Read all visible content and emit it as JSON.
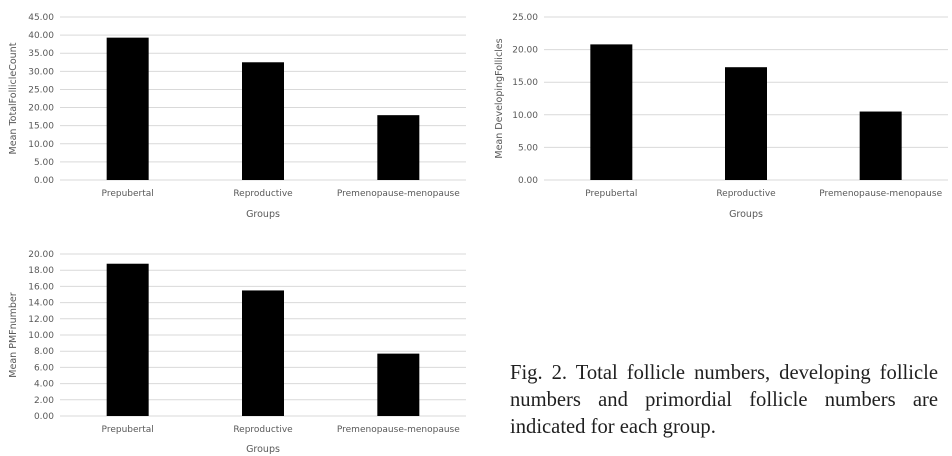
{
  "chart_data": [
    {
      "type": "bar",
      "categories": [
        "Prepubertal",
        "Reproductive",
        "Premenopause-menopause"
      ],
      "values": [
        39.3,
        32.5,
        17.9
      ],
      "xlabel": "Groups",
      "ylabel": "Mean TotalFollicleCount",
      "ylim": [
        0,
        45
      ],
      "yticks": [
        "0.00",
        "5.00",
        "10.00",
        "15.00",
        "20.00",
        "25.00",
        "30.00",
        "35.00",
        "40.00",
        "45.00"
      ],
      "grid": true,
      "bar_color": "#000000"
    },
    {
      "type": "bar",
      "categories": [
        "Prepubertal",
        "Reproductive",
        "Premenopause-menopause"
      ],
      "values": [
        20.8,
        17.3,
        10.5
      ],
      "xlabel": "Groups",
      "ylabel": "Mean DevelopingFollicles",
      "ylim": [
        0,
        25
      ],
      "yticks": [
        "0.00",
        "5.00",
        "10.00",
        "15.00",
        "20.00",
        "25.00"
      ],
      "grid": true,
      "bar_color": "#000000"
    },
    {
      "type": "bar",
      "categories": [
        "Prepubertal",
        "Reproductive",
        "Premenopause-menopause"
      ],
      "values": [
        18.8,
        15.5,
        7.7
      ],
      "xlabel": "Groups",
      "ylabel": "Mean PMFnumber",
      "ylim": [
        0,
        20
      ],
      "yticks": [
        "0.00",
        "2.00",
        "4.00",
        "6.00",
        "8.00",
        "10.00",
        "12.00",
        "14.00",
        "16.00",
        "18.00",
        "20.00"
      ],
      "grid": true,
      "bar_color": "#000000"
    }
  ],
  "caption": "Fig. 2. Total follicle numbers, developing follicle numbers and primordial follicle numbers are indicated for each group."
}
